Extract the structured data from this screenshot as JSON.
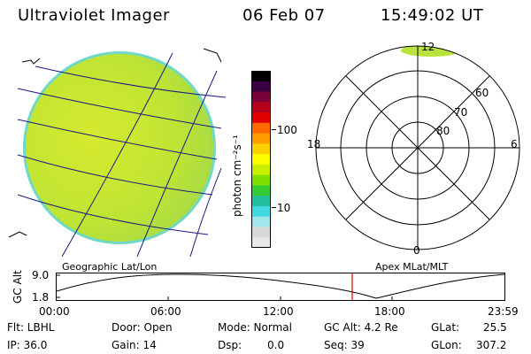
{
  "header": {
    "instrument": "Ultraviolet Imager",
    "date": "06 Feb 07",
    "time": "15:49:02 UT"
  },
  "left_panel": {
    "label": "Geographic Lat/Lon"
  },
  "colorbar": {
    "unit_label": "photon cm⁻²s⁻¹",
    "ticks": [
      "100",
      "10"
    ],
    "colors": [
      "#000000",
      "#3a0040",
      "#7a003a",
      "#b3001c",
      "#e00000",
      "#ff6a00",
      "#ff9c00",
      "#ffd000",
      "#ffff00",
      "#c8f000",
      "#7ee000",
      "#33cc33",
      "#22c0a0",
      "#44d8e0",
      "#a0e6ea",
      "#d8d8d8",
      "#e8e8e8"
    ]
  },
  "polar_plot": {
    "label": "Apex MLat/MLT",
    "mlt_labels": {
      "top": "12",
      "left": "18",
      "right": "6",
      "bottom": "0"
    },
    "lat_labels": [
      "60",
      "70",
      "80"
    ]
  },
  "alt_plot": {
    "axis_title": "GC Alt",
    "y_ticks": [
      "9.0",
      "1.8"
    ],
    "x_ticks": [
      "00:00",
      "06:00",
      "12:00",
      "18:00",
      "23:59"
    ],
    "current_marker_time": "15:49"
  },
  "footer": {
    "flt": "Flt: LBHL",
    "ip": "IP: 36.0",
    "door": "Door: Open",
    "gain": "Gain: 14",
    "mode": "Mode: Normal",
    "dsp_label": "Dsp:",
    "dsp_value": "0.0",
    "gc_alt": "GC Alt: 4.2 Re",
    "seq": "Seq: 39",
    "glat_label": "GLat:",
    "glat_value": "25.5",
    "glon_label": "GLon:",
    "glon_value": "307.2"
  },
  "colors": {
    "disk_fill": "#b7e23c",
    "disk_edge": "#5fd8c8",
    "marker": "#e00000"
  }
}
